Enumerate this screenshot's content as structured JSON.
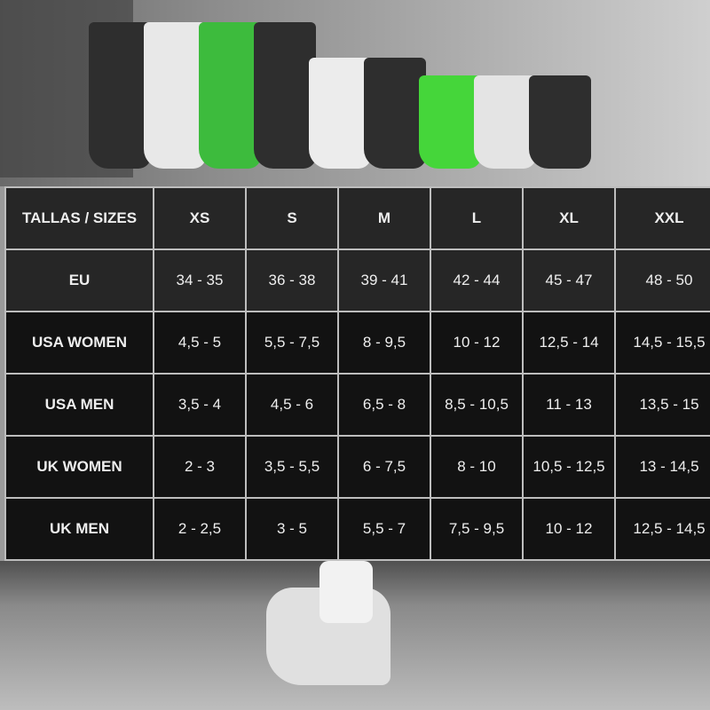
{
  "headers": [
    "TALLAS / SIZES",
    "XS",
    "S",
    "M",
    "L",
    "XL",
    "XXL"
  ],
  "rows": [
    {
      "label": "EU",
      "values": [
        "34 - 35",
        "36 - 38",
        "39 - 41",
        "42 - 44",
        "45 - 47",
        "48 - 50"
      ]
    },
    {
      "label": "USA WOMEN",
      "values": [
        "4,5 - 5",
        "5,5 - 7,5",
        "8 - 9,5",
        "10 - 12",
        "12,5 - 14",
        "14,5 - 15,5"
      ]
    },
    {
      "label": "USA MEN",
      "values": [
        "3,5 - 4",
        "4,5 - 6",
        "6,5 - 8",
        "8,5 - 10,5",
        "11 - 13",
        "13,5 - 15"
      ]
    },
    {
      "label": "UK WOMEN",
      "values": [
        "2 - 3",
        "3,5 - 5,5",
        "6 - 7,5",
        "8 - 10",
        "10,5 - 12,5",
        "13 - 14,5"
      ]
    },
    {
      "label": "UK MEN",
      "values": [
        "2 - 2,5",
        "3 - 5",
        "5,5 - 7",
        "7,5 - 9,5",
        "10 - 12",
        "12,5 - 14,5"
      ]
    }
  ],
  "sock_colors": [
    "#2e2e2e",
    "#e8e8e8",
    "#3dbb3d",
    "#2e2e2e",
    "#ececec",
    "#2e2e2e",
    "#45d63a",
    "#e4e4e4",
    "#2e2e2e"
  ]
}
